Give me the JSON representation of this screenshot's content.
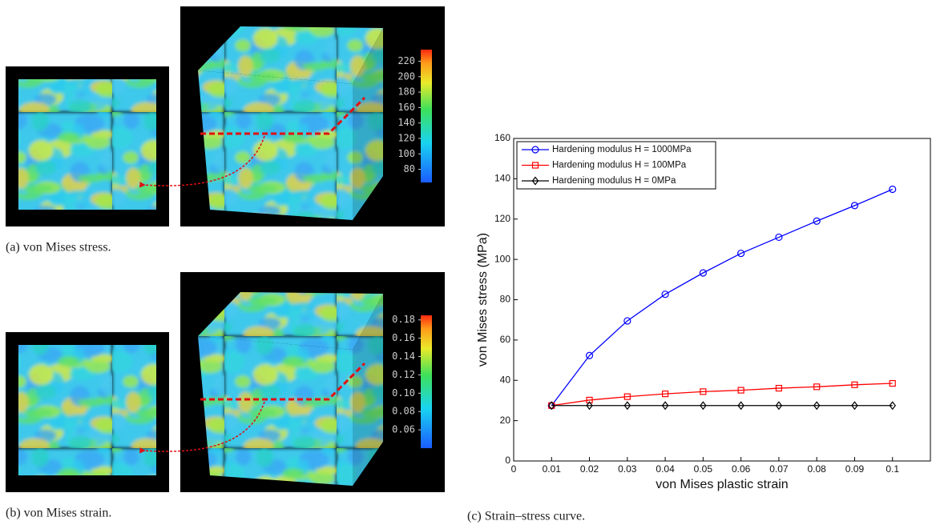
{
  "panels": [
    {
      "caption": "(a) von Mises stress.",
      "colorbar": {
        "range": [
          63,
          235
        ],
        "ticks": [
          80,
          100,
          120,
          140,
          160,
          180,
          200,
          220
        ]
      }
    },
    {
      "caption": "(b) von Mises strain.",
      "colorbar": {
        "range": [
          0.04,
          0.185
        ],
        "ticks": [
          0.06,
          0.08,
          {
            "value": 0.1,
            "label": "0.10"
          },
          0.12,
          0.14,
          0.16,
          0.18
        ]
      }
    }
  ],
  "chart_data": {
    "type": "line",
    "caption": "(c) Strain–stress curve.",
    "x_label": "von Mises plastic strain",
    "y_label": "von Mises stress (MPa)",
    "x": [
      0.01,
      0.02,
      0.03,
      0.04,
      0.05,
      0.06,
      0.07,
      0.08,
      0.09,
      0.1
    ],
    "series": [
      {
        "name": "Hardening modulus H = 1000MPa",
        "color": "#0000ff",
        "marker": "circle",
        "values": [
          27.5,
          52.3,
          69.5,
          82.7,
          93.3,
          103,
          111,
          119,
          126.7,
          134.8
        ]
      },
      {
        "name": "Hardening modulus H = 100MPa",
        "color": "#ff0000",
        "marker": "square",
        "values": [
          27.5,
          30.2,
          31.9,
          33.3,
          34.4,
          35.1,
          36.1,
          36.8,
          37.8,
          38.5
        ]
      },
      {
        "name": "Hardening modulus H = 0MPa",
        "color": "#000000",
        "marker": "diamond",
        "values": [
          27.5,
          27.5,
          27.5,
          27.5,
          27.5,
          27.5,
          27.5,
          27.5,
          27.5,
          27.5
        ]
      }
    ],
    "xlim": [
      0,
      0.11
    ],
    "ylim": [
      0,
      160
    ],
    "xticks": [
      0,
      0.01,
      0.02,
      0.03,
      0.04,
      0.05,
      0.06,
      0.07,
      0.08,
      0.09,
      0.1
    ],
    "yticks": [
      0,
      20,
      40,
      60,
      80,
      100,
      120,
      140,
      160
    ],
    "legend": "upper left"
  }
}
